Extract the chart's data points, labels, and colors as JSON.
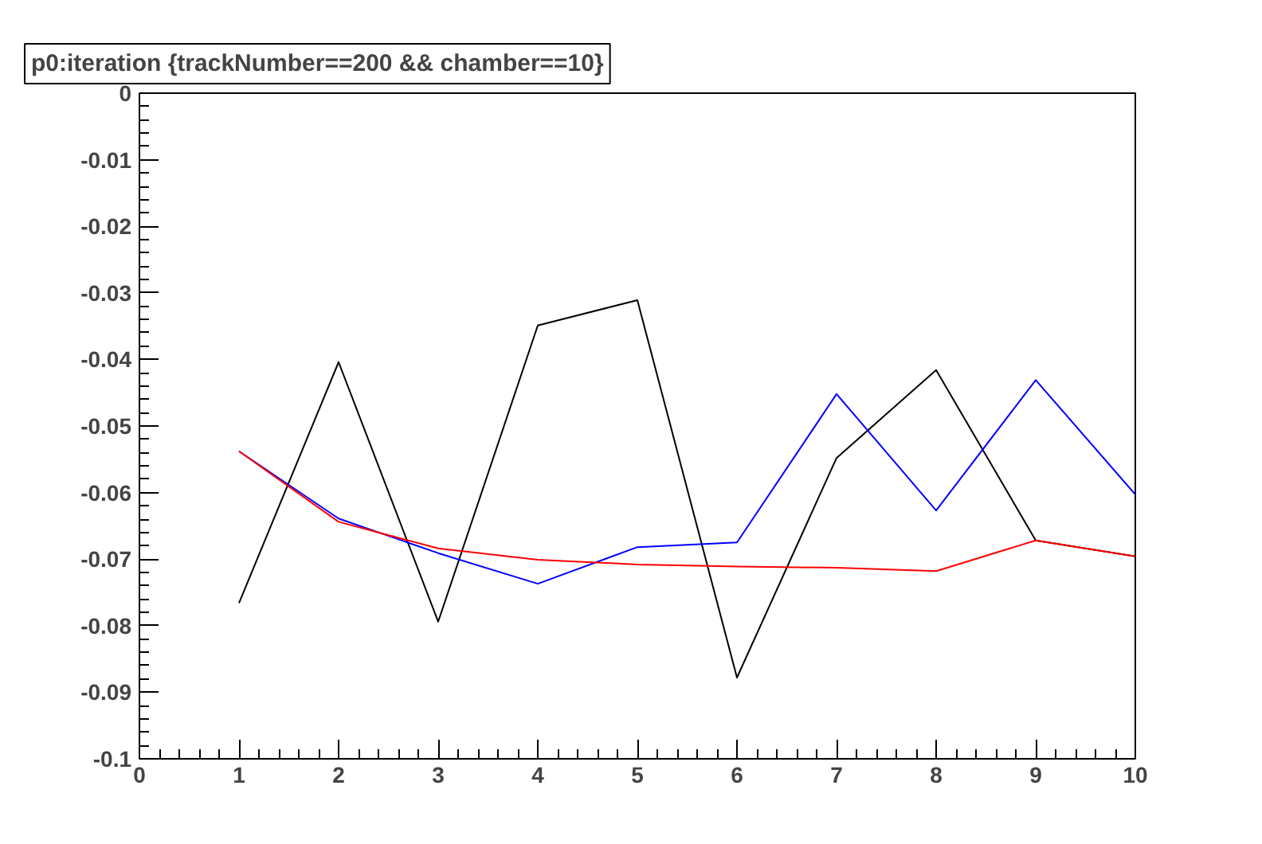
{
  "chart_data": {
    "type": "line",
    "title": "p0:iteration {trackNumber==200 && chamber==10}",
    "x": [
      1,
      2,
      3,
      4,
      5,
      6,
      7,
      8,
      9,
      10
    ],
    "series": [
      {
        "color": "#000000",
        "values": [
          -0.0766,
          -0.0404,
          -0.0794,
          -0.0349,
          -0.0311,
          -0.0878,
          -0.0548,
          -0.0416,
          -0.0672,
          -0.0696
        ]
      },
      {
        "color": "#0000ff",
        "values": [
          -0.0538,
          -0.0639,
          -0.0691,
          -0.0737,
          -0.0682,
          -0.0675,
          -0.0452,
          -0.0627,
          -0.0431,
          -0.0603
        ]
      },
      {
        "color": "#ff0000",
        "values": [
          -0.0538,
          -0.0644,
          -0.0684,
          -0.0701,
          -0.0708,
          -0.0711,
          -0.0713,
          -0.0718,
          -0.0672,
          -0.0696
        ]
      }
    ],
    "xlim": [
      0,
      10
    ],
    "xticks": [
      0,
      1,
      2,
      3,
      4,
      5,
      6,
      7,
      8,
      9,
      10
    ],
    "ylim": [
      -0.1,
      0
    ],
    "yticks": [
      0,
      -0.01,
      -0.02,
      -0.03,
      -0.04,
      -0.05,
      -0.06,
      -0.07,
      -0.08,
      -0.09,
      -0.1
    ],
    "grid": false,
    "marker": "none",
    "line_style": "solid"
  }
}
